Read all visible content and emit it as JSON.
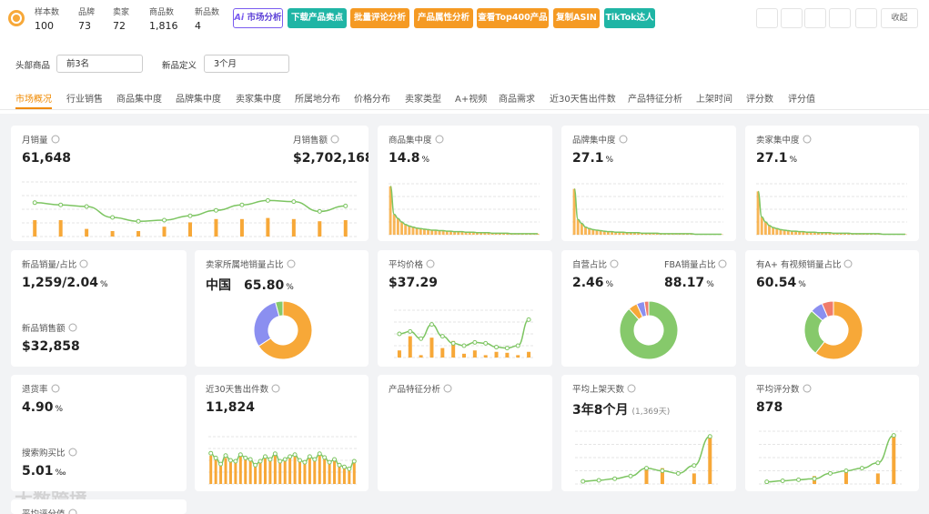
{
  "header": {
    "stats": [
      {
        "label": "样本数",
        "value": "100"
      },
      {
        "label": "品牌",
        "value": "73"
      },
      {
        "label": "卖家",
        "value": "72"
      },
      {
        "label": "商品数",
        "value": "1,816"
      },
      {
        "label": "新品数",
        "value": "4"
      }
    ],
    "ai_badge": "Ai",
    "buttons": [
      "市场分析",
      "下载产品卖点",
      "批量评论分析",
      "产品属性分析",
      "查看Top400产品",
      "复制ASIN",
      "TikTok达人"
    ],
    "collapse": "收起"
  },
  "filters": [
    {
      "label": "头部商品",
      "value": "前3名"
    },
    {
      "label": "新品定义",
      "value": "3个月"
    }
  ],
  "tabs": [
    "市场概况",
    "行业销售",
    "商品集中度",
    "品牌集中度",
    "卖家集中度",
    "所属地分布",
    "价格分布",
    "卖家类型",
    "A+视频",
    "商品需求",
    "近30天售出件数",
    "产品特征分析",
    "上架时间",
    "评分数",
    "评分值"
  ],
  "active_tab": 0,
  "cards": [
    {
      "items": [
        {
          "label": "月销量",
          "value": "61,648"
        },
        {
          "label": "月销售额",
          "value": "$2,702,168"
        }
      ],
      "chart": {
        "type": "bar-line",
        "ylim": [
          0,
          100
        ],
        "bars": [
          30,
          30,
          14,
          10,
          10,
          18,
          26,
          32,
          32,
          34,
          32,
          28,
          30
        ],
        "line": [
          62,
          58,
          55,
          35,
          28,
          30,
          38,
          48,
          58,
          66,
          64,
          46,
          56
        ]
      }
    },
    {
      "items": [
        {
          "label": "商品集中度",
          "value": "14.8",
          "unit": "%"
        }
      ],
      "chart": {
        "type": "pareto",
        "ylim": [
          0,
          100
        ],
        "bars": [
          95,
          40,
          32,
          25,
          20,
          17,
          15,
          13,
          12,
          11,
          10,
          9,
          9,
          8,
          8,
          7,
          7,
          6,
          6,
          6,
          5,
          5,
          5,
          4,
          4,
          4,
          4,
          3,
          3,
          3,
          3,
          3,
          2,
          2,
          2,
          2,
          2,
          2,
          2,
          2
        ]
      }
    },
    {
      "items": [
        {
          "label": "品牌集中度",
          "value": "27.1",
          "unit": "%"
        }
      ],
      "chart": {
        "type": "pareto",
        "ylim": [
          0,
          100
        ],
        "bars": [
          90,
          30,
          22,
          15,
          12,
          10,
          9,
          8,
          7,
          6,
          6,
          5,
          5,
          5,
          4,
          4,
          4,
          4,
          3,
          3,
          3,
          3,
          3,
          2,
          2,
          2,
          2,
          2,
          2,
          2,
          2,
          2,
          1,
          1,
          1,
          1,
          1,
          1,
          1,
          1
        ]
      }
    },
    {
      "items": [
        {
          "label": "卖家集中度",
          "value": "27.1",
          "unit": "%"
        }
      ],
      "chart": {
        "type": "pareto",
        "ylim": [
          0,
          100
        ],
        "bars": [
          85,
          35,
          25,
          18,
          14,
          12,
          10,
          9,
          8,
          7,
          7,
          6,
          6,
          5,
          5,
          5,
          4,
          4,
          4,
          4,
          3,
          3,
          3,
          3,
          3,
          2,
          2,
          2,
          2,
          2,
          2,
          2,
          2,
          1,
          1,
          1,
          1,
          1,
          1,
          1
        ]
      }
    },
    {
      "items": [
        {
          "label": "新品销量/占比",
          "value": "1,259/2.04",
          "unit": "%"
        },
        {
          "label": "新品销售额",
          "value": "$32,858"
        }
      ]
    },
    {
      "items": [
        {
          "label": "卖家所属地销量占比",
          "prefix": "中国",
          "value": "65.80",
          "unit": "%"
        }
      ],
      "chart": {
        "type": "donut",
        "values": [
          65.8,
          30,
          4.2
        ],
        "colors": [
          "#f7a838",
          "#8b8ff0",
          "#86c96b"
        ]
      }
    },
    {
      "items": [
        {
          "label": "平均价格",
          "value": "$37.29"
        }
      ],
      "chart": {
        "type": "bar-line",
        "ylim": [
          0,
          100
        ],
        "bars": [
          15,
          45,
          5,
          42,
          20,
          35,
          8,
          15,
          5,
          12,
          10,
          5,
          12
        ],
        "line": [
          50,
          55,
          40,
          70,
          45,
          30,
          25,
          32,
          30,
          22,
          20,
          25,
          80
        ]
      }
    },
    {
      "items": [
        {
          "label": "自营占比",
          "value": "2.46",
          "unit": "%"
        },
        {
          "label": "FBA销量占比",
          "value": "88.17",
          "unit": "%"
        }
      ],
      "chart": {
        "type": "donut",
        "values": [
          88.17,
          5,
          4.37,
          2.46
        ],
        "colors": [
          "#86c96b",
          "#f7a838",
          "#8b8ff0",
          "#f07c6c"
        ]
      }
    },
    {
      "items": [
        {
          "label": "有A+ 有视频销量占比",
          "value": "60.54",
          "unit": "%"
        }
      ],
      "chart": {
        "type": "donut",
        "values": [
          60.54,
          26,
          7,
          6.46
        ],
        "colors": [
          "#f7a838",
          "#86c96b",
          "#8b8ff0",
          "#f07c6c"
        ]
      }
    },
    {
      "items": [
        {
          "label": "退货率",
          "value": "4.90",
          "unit": "%"
        },
        {
          "label": "搜索购买比",
          "value": "5.01",
          "unit": "‰"
        }
      ]
    },
    {
      "items": [
        {
          "label": "近30天售出件数",
          "value": "11,824"
        }
      ],
      "chart": {
        "type": "bar-line",
        "ylim": [
          0,
          100
        ],
        "bars": [
          60,
          55,
          40,
          55,
          50,
          45,
          60,
          55,
          50,
          40,
          45,
          55,
          50,
          60,
          45,
          50,
          55,
          60,
          50,
          45,
          55,
          50,
          60,
          55,
          45,
          50,
          40,
          35,
          30,
          45
        ],
        "line": [
          65,
          55,
          42,
          60,
          50,
          48,
          62,
          55,
          52,
          40,
          48,
          58,
          52,
          64,
          48,
          52,
          58,
          62,
          50,
          46,
          58,
          52,
          64,
          56,
          46,
          52,
          40,
          36,
          32,
          48
        ]
      }
    },
    {
      "items": [
        {
          "label": "产品特征分析"
        }
      ]
    },
    {
      "items": [
        {
          "label": "平均上架天数",
          "value": "3年8个月",
          "note": "(1,369天)"
        }
      ],
      "chart": {
        "type": "bar-line",
        "ylim": [
          0,
          100
        ],
        "bars": [
          0,
          0,
          0,
          0,
          30,
          30,
          0,
          20,
          88
        ],
        "line": [
          5,
          7,
          10,
          15,
          30,
          25,
          20,
          35,
          90
        ]
      }
    },
    {
      "items": [
        {
          "label": "平均评分数",
          "value": "878"
        }
      ],
      "chart": {
        "type": "bar-line",
        "ylim": [
          0,
          100
        ],
        "bars": [
          0,
          0,
          0,
          15,
          0,
          25,
          0,
          20,
          92
        ],
        "line": [
          4,
          6,
          8,
          10,
          20,
          25,
          30,
          40,
          92
        ]
      }
    },
    {
      "items": [
        {
          "label": "平均评分值"
        }
      ]
    }
  ],
  "watermark": "大数跨境"
}
